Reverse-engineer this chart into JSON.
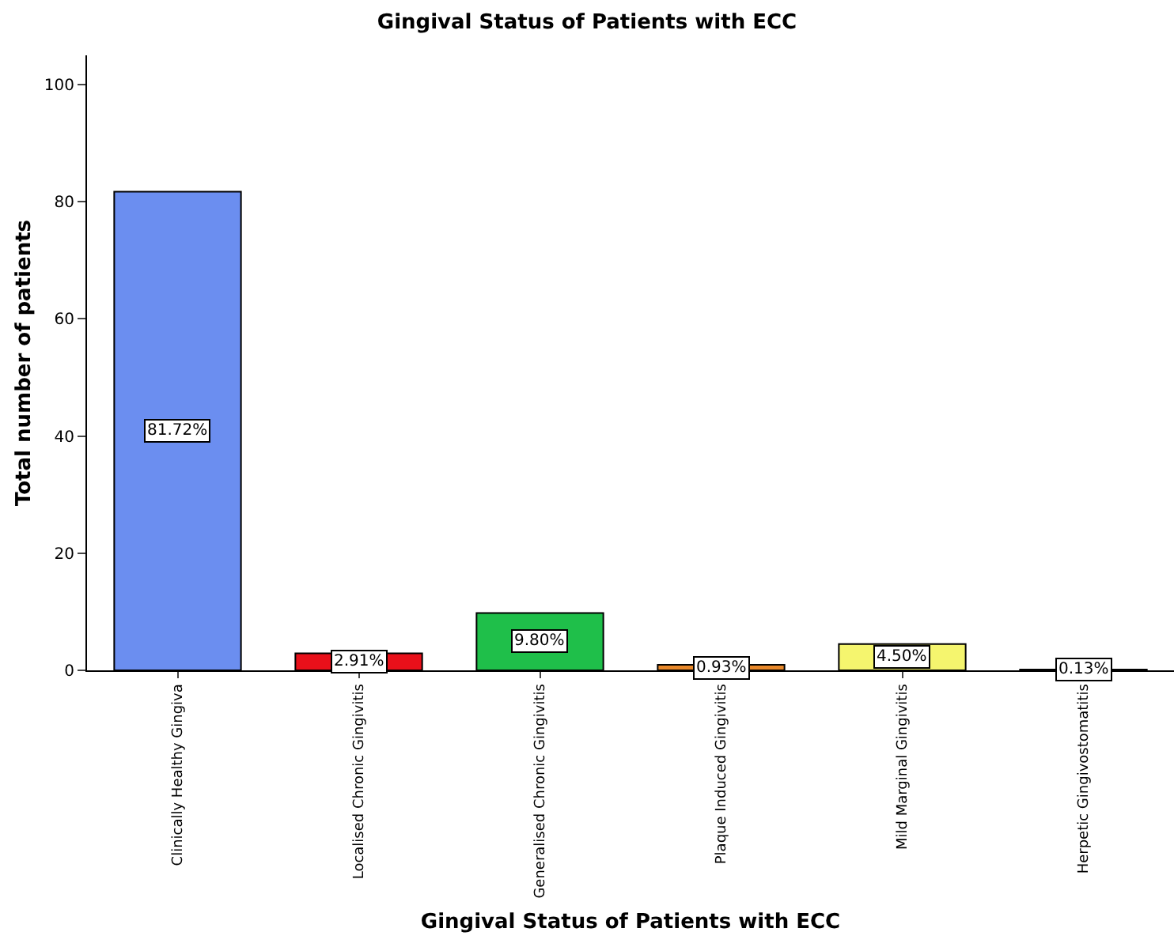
{
  "chart_data": {
    "type": "bar",
    "title": "Gingival Status of Patients with ECC",
    "xlabel": "Gingival Status of Patients with ECC",
    "ylabel": "Total number of patients",
    "categories": [
      "Clinically Healthy Gingiva",
      "Localised Chronic Gingivitis",
      "Generalised Chronic Gingivitis",
      "Plaque Induced Gingivitis",
      "Mild Marginal Gingivitis",
      "Herpetic Gingivostomatitis"
    ],
    "values": [
      81.72,
      2.91,
      9.8,
      0.93,
      4.5,
      0.13
    ],
    "value_labels": [
      "81.72%",
      "2.91%",
      "9.80%",
      "0.93%",
      "4.50%",
      "0.13%"
    ],
    "colors": [
      "#6b8ef0",
      "#e8101a",
      "#1fbf4a",
      "#e8882a",
      "#f5f56e",
      "#4a2a7a"
    ],
    "ylim": [
      0,
      105
    ],
    "yticks": [
      0,
      20,
      40,
      60,
      80,
      100
    ],
    "grid": false
  }
}
